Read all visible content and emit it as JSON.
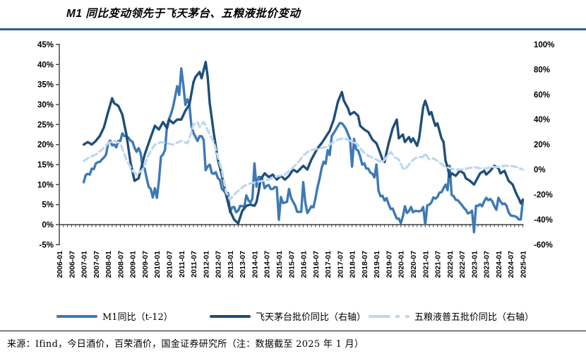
{
  "title": "M1 同比变动领先于飞天茅台、五粮液批价变动",
  "footer": {
    "source_note": "来源：Ifind，今日酒价，百荣酒价，国金证券研究所（注：数据截至 2025 年 1 月）"
  },
  "colors": {
    "title_rule": "#2e5f94",
    "axis_line": "#3f3f3f",
    "label_text": "#000000",
    "m1_line": "#3e79b6",
    "moutai_line": "#1f4e79",
    "wuliangye_line": "#bdd7ee"
  },
  "legend": {
    "items": [
      {
        "label": "M1同比（t-12）",
        "style": "solid",
        "color": "#3e79b6"
      },
      {
        "label": "飞天茅台批价同比（右轴）",
        "style": "solid",
        "color": "#1f4e79"
      },
      {
        "label": "五粮液普五批价同比（右轴）",
        "style": "dashed",
        "color": "#bdd7ee"
      }
    ]
  },
  "chart_data": {
    "type": "line",
    "title": "M1 同比变动领先于飞天茅台、五粮液批价变动",
    "grid": false,
    "legend_position": "bottom",
    "left_axis": {
      "min": -5,
      "max": 45,
      "step": 5,
      "labels": [
        "45%",
        "40%",
        "35%",
        "30%",
        "25%",
        "20%",
        "15%",
        "10%",
        "5%",
        "0%",
        "-5%"
      ]
    },
    "right_axis": {
      "min": -60,
      "max": 100,
      "step": 20,
      "labels": [
        "100%",
        "80%",
        "60%",
        "40%",
        "20%",
        "0%",
        "-20%",
        "-40%",
        "-60%"
      ]
    },
    "x_axis": {
      "start": "2006-01",
      "end": "2025-01",
      "label_step_months": 6,
      "minor_tick_step_months": 2,
      "tick_labels": [
        "2006-01",
        "2006-07",
        "2007-01",
        "2007-07",
        "2008-01",
        "2008-07",
        "2009-01",
        "2009-07",
        "2010-01",
        "2010-07",
        "2011-01",
        "2011-07",
        "2012-01",
        "2012-07",
        "2013-01",
        "2013-07",
        "2014-01",
        "2014-07",
        "2015-01",
        "2015-07",
        "2016-01",
        "2016-07",
        "2017-01",
        "2017-07",
        "2018-01",
        "2018-07",
        "2019-01",
        "2019-07",
        "2020-01",
        "2020-07",
        "2021-01",
        "2021-07",
        "2022-01",
        "2022-07",
        "2023-01",
        "2023-07",
        "2024-01",
        "2024-07",
        "2025-01"
      ]
    },
    "series": [
      {
        "name": "M1同比（t-12）",
        "axis": "left",
        "style": "solid",
        "color": "#3e79b6",
        "width": 3.4,
        "start_month": 12,
        "monthly_values": [
          10.6,
          12.4,
          12.7,
          12.5,
          14.0,
          13.9,
          15.3,
          15.6,
          15.7,
          16.3,
          16.8,
          17.5,
          20.2,
          21.0,
          19.8,
          20.0,
          19.3,
          20.9,
          20.9,
          22.8,
          22.1,
          22.2,
          21.7,
          21.0,
          20.7,
          19.2,
          18.2,
          19.1,
          17.9,
          14.2,
          14.0,
          11.5,
          9.4,
          8.9,
          6.8,
          9.1,
          6.7,
          10.9,
          17.0,
          17.5,
          18.7,
          24.8,
          26.4,
          27.7,
          29.5,
          32.0,
          34.6,
          32.4,
          39.0,
          35.0,
          29.9,
          31.3,
          29.9,
          24.6,
          22.9,
          21.9,
          20.9,
          22.1,
          22.1,
          21.2,
          13.6,
          14.5,
          15.0,
          12.9,
          12.7,
          13.1,
          11.6,
          11.2,
          8.9,
          8.4,
          7.8,
          7.9,
          3.1,
          4.3,
          4.4,
          3.1,
          3.5,
          4.7,
          4.6,
          4.5,
          7.3,
          6.1,
          5.5,
          6.5,
          15.3,
          9.5,
          11.9,
          11.9,
          11.3,
          9.1,
          9.7,
          9.9,
          8.9,
          8.9,
          9.4,
          9.3,
          1.2,
          6.9,
          5.4,
          5.5,
          5.7,
          8.9,
          6.7,
          5.7,
          4.8,
          3.2,
          3.2,
          3.2,
          10.6,
          5.6,
          2.9,
          3.7,
          4.6,
          4.3,
          6.6,
          9.3,
          11.4,
          14.0,
          15.7,
          15.2,
          18.6,
          17.4,
          22.1,
          22.9,
          23.7,
          24.6,
          25.4,
          25.3,
          24.7,
          23.9,
          22.7,
          21.4,
          14.5,
          21.4,
          18.8,
          18.5,
          17.0,
          15.0,
          15.3,
          14.0,
          14.0,
          13.0,
          12.7,
          11.8,
          15.0,
          8.5,
          7.1,
          7.2,
          6.0,
          6.6,
          5.1,
          3.9,
          4.0,
          2.7,
          1.5,
          1.5,
          0.4,
          2.0,
          4.6,
          2.9,
          3.4,
          4.4,
          3.1,
          3.4,
          3.4,
          3.3,
          3.5,
          4.4,
          0.0,
          4.8,
          5.0,
          5.5,
          6.8,
          6.5,
          6.9,
          8.0,
          8.1,
          9.1,
          10.0,
          8.6,
          14.7,
          7.4,
          7.1,
          6.2,
          6.1,
          5.5,
          4.9,
          4.2,
          3.7,
          2.8,
          3.0,
          3.5,
          -1.9,
          4.7,
          4.7,
          5.1,
          4.6,
          5.8,
          6.7,
          6.1,
          6.4,
          5.8,
          4.6,
          3.7,
          6.7,
          5.8,
          5.1,
          5.3,
          4.7,
          3.1,
          2.3,
          2.2,
          2.1,
          1.9,
          1.3,
          1.3,
          5.9
        ]
      },
      {
        "name": "飞天茅台批价同比（右轴）",
        "axis": "right",
        "style": "solid",
        "color": "#1f4e79",
        "width": 3.4,
        "points": [
          [
            12,
            20
          ],
          [
            14,
            22
          ],
          [
            16,
            20
          ],
          [
            18,
            23
          ],
          [
            20,
            27
          ],
          [
            22,
            34
          ],
          [
            24,
            46
          ],
          [
            26,
            57
          ],
          [
            27,
            53
          ],
          [
            29,
            51
          ],
          [
            31,
            44
          ],
          [
            33,
            28
          ],
          [
            35,
            6
          ],
          [
            37,
            -9
          ],
          [
            39,
            -7
          ],
          [
            42,
            12
          ],
          [
            45,
            26
          ],
          [
            47,
            35
          ],
          [
            49,
            32
          ],
          [
            51,
            38
          ],
          [
            53,
            33
          ],
          [
            54,
            40
          ],
          [
            56,
            37
          ],
          [
            58,
            40
          ],
          [
            60,
            40
          ],
          [
            62,
            47
          ],
          [
            64,
            52
          ],
          [
            66,
            70
          ],
          [
            67,
            74
          ],
          [
            69,
            78
          ],
          [
            70,
            73
          ],
          [
            72,
            86
          ],
          [
            73,
            74
          ],
          [
            74,
            53
          ],
          [
            76,
            29
          ],
          [
            78,
            8
          ],
          [
            80,
            -5
          ],
          [
            82,
            -20
          ],
          [
            84,
            -33
          ],
          [
            86,
            -40
          ],
          [
            88,
            -43
          ],
          [
            90,
            -33
          ],
          [
            92,
            -29
          ],
          [
            94,
            -28
          ],
          [
            96,
            -29
          ],
          [
            97,
            -26
          ],
          [
            98,
            -18
          ],
          [
            99,
            -8
          ],
          [
            101,
            -3
          ],
          [
            103,
            -6
          ],
          [
            105,
            -4
          ],
          [
            107,
            -8
          ],
          [
            109,
            -5
          ],
          [
            111,
            -8
          ],
          [
            113,
            -5
          ],
          [
            115,
            0
          ],
          [
            117,
            -2
          ],
          [
            120,
            3
          ],
          [
            122,
            0
          ],
          [
            124,
            8
          ],
          [
            127,
            17
          ],
          [
            129,
            21
          ],
          [
            131,
            26
          ],
          [
            133,
            31
          ],
          [
            135,
            40
          ],
          [
            137,
            54
          ],
          [
            139,
            62
          ],
          [
            140,
            55
          ],
          [
            142,
            49
          ],
          [
            143,
            44
          ],
          [
            145,
            46
          ],
          [
            147,
            43
          ],
          [
            148,
            35
          ],
          [
            150,
            32
          ],
          [
            152,
            30
          ],
          [
            154,
            24
          ],
          [
            156,
            21
          ],
          [
            157,
            17
          ],
          [
            159,
            8
          ],
          [
            160,
            6
          ],
          [
            161,
            14
          ],
          [
            162,
            21
          ],
          [
            164,
            33
          ],
          [
            166,
            40
          ],
          [
            167,
            25
          ],
          [
            169,
            28
          ],
          [
            170,
            22
          ],
          [
            172,
            26
          ],
          [
            173,
            22
          ],
          [
            174,
            25
          ],
          [
            176,
            19
          ],
          [
            177,
            25
          ],
          [
            179,
            50
          ],
          [
            180,
            55
          ],
          [
            181,
            50
          ],
          [
            182,
            44
          ],
          [
            183,
            46
          ],
          [
            184,
            40
          ],
          [
            185,
            35
          ],
          [
            186,
            37
          ],
          [
            188,
            25
          ],
          [
            189,
            22
          ],
          [
            190,
            7
          ],
          [
            191,
            2
          ],
          [
            192,
            -6
          ],
          [
            193,
            -3
          ],
          [
            195,
            -5
          ],
          [
            197,
            -1
          ],
          [
            199,
            -3
          ],
          [
            200,
            -7
          ],
          [
            202,
            -9
          ],
          [
            204,
            -12
          ],
          [
            205,
            -9
          ],
          [
            207,
            -3
          ],
          [
            209,
            -1
          ],
          [
            210,
            -4
          ],
          [
            212,
            -1
          ],
          [
            213,
            1
          ],
          [
            214,
            3
          ],
          [
            216,
            1
          ],
          [
            217,
            -3
          ],
          [
            219,
            -1
          ],
          [
            220,
            -5
          ],
          [
            221,
            -9
          ],
          [
            223,
            -12
          ],
          [
            224,
            -16
          ],
          [
            225,
            -20
          ],
          [
            226,
            -23
          ],
          [
            227,
            -27
          ],
          [
            228,
            -24
          ]
        ]
      },
      {
        "name": "五粮液普五批价同比（右轴）",
        "axis": "right",
        "style": "dashed",
        "color": "#bdd7ee",
        "width": 3.2,
        "points": [
          [
            12,
            7
          ],
          [
            15,
            10
          ],
          [
            18,
            12
          ],
          [
            21,
            16
          ],
          [
            24,
            21
          ],
          [
            27,
            23
          ],
          [
            30,
            21
          ],
          [
            33,
            8
          ],
          [
            36,
            -1
          ],
          [
            38,
            -4
          ],
          [
            41,
            0
          ],
          [
            44,
            12
          ],
          [
            47,
            20
          ],
          [
            50,
            22
          ],
          [
            53,
            21
          ],
          [
            56,
            20
          ],
          [
            60,
            23
          ],
          [
            63,
            21
          ],
          [
            65,
            30
          ],
          [
            66,
            36
          ],
          [
            68,
            38
          ],
          [
            69,
            34
          ],
          [
            71,
            38
          ],
          [
            72,
            35
          ],
          [
            74,
            28
          ],
          [
            76,
            22
          ],
          [
            78,
            10
          ],
          [
            80,
            -1
          ],
          [
            82,
            -18
          ],
          [
            84,
            -24
          ],
          [
            86,
            -20
          ],
          [
            88,
            -17
          ],
          [
            91,
            -13
          ],
          [
            94,
            -11
          ],
          [
            97,
            -10
          ],
          [
            100,
            -9
          ],
          [
            103,
            -8
          ],
          [
            106,
            -6
          ],
          [
            108,
            -5
          ],
          [
            111,
            -4
          ],
          [
            114,
            0
          ],
          [
            117,
            5
          ],
          [
            120,
            11
          ],
          [
            122,
            14
          ],
          [
            125,
            16
          ],
          [
            128,
            17
          ],
          [
            131,
            18
          ],
          [
            134,
            21
          ],
          [
            137,
            24
          ],
          [
            140,
            25
          ],
          [
            143,
            23
          ],
          [
            146,
            21
          ],
          [
            149,
            15
          ],
          [
            152,
            11
          ],
          [
            155,
            9
          ],
          [
            157,
            7
          ],
          [
            159,
            6
          ],
          [
            162,
            12
          ],
          [
            163,
            14
          ],
          [
            165,
            10
          ],
          [
            167,
            8
          ],
          [
            169,
            1
          ],
          [
            170,
            0
          ],
          [
            173,
            6
          ],
          [
            175,
            9
          ],
          [
            177,
            10
          ],
          [
            179,
            10
          ],
          [
            180,
            13
          ],
          [
            182,
            8
          ],
          [
            184,
            9
          ],
          [
            186,
            7
          ],
          [
            189,
            3
          ],
          [
            192,
            1
          ],
          [
            195,
            0
          ],
          [
            198,
            0
          ],
          [
            201,
            1
          ],
          [
            204,
            2
          ],
          [
            207,
            1
          ],
          [
            210,
            1
          ],
          [
            213,
            2
          ],
          [
            216,
            2
          ],
          [
            219,
            3
          ],
          [
            222,
            3
          ],
          [
            225,
            2
          ],
          [
            228,
            0
          ]
        ]
      }
    ]
  }
}
